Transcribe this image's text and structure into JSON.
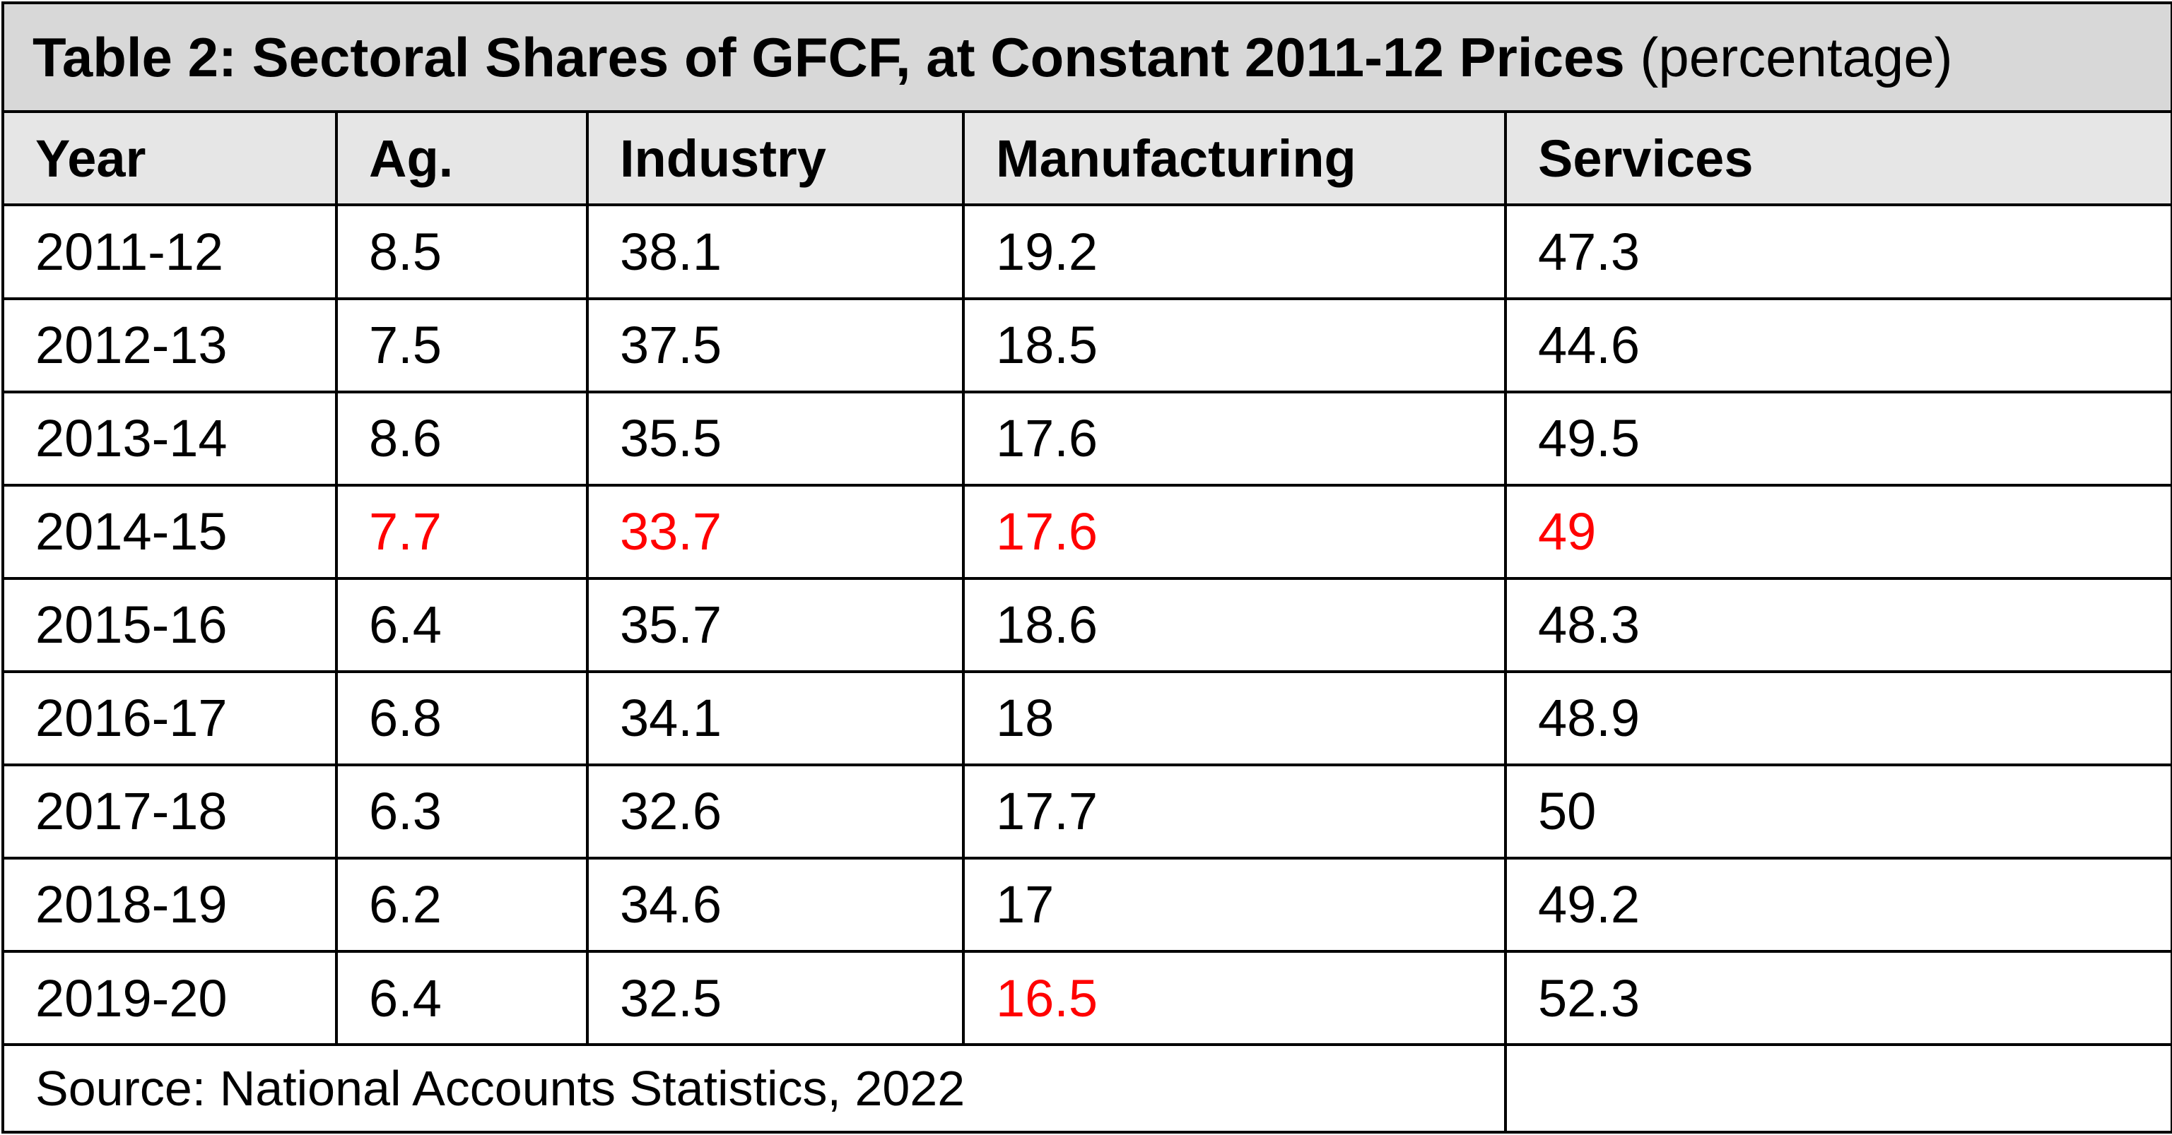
{
  "table": {
    "title": "Table 2: Sectoral Shares of GFCF, at Constant 2011-12 Prices",
    "unit": "(percentage)",
    "headers": [
      "Year",
      "Ag.",
      "Industry",
      "Manufacturing",
      "Services"
    ],
    "rows": [
      [
        "2011-12",
        "8.5",
        "38.1",
        "19.2",
        "47.3"
      ],
      [
        "2012-13",
        "7.5",
        "37.5",
        "18.5",
        "44.6"
      ],
      [
        "2013-14",
        "8.6",
        "35.5",
        "17.6",
        "49.5"
      ],
      [
        "2014-15",
        "7.7",
        "33.7",
        "17.6",
        "49"
      ],
      [
        "2015-16",
        "6.4",
        "35.7",
        "18.6",
        "48.3"
      ],
      [
        "2016-17",
        "6.8",
        "34.1",
        "18",
        "48.9"
      ],
      [
        "2017-18",
        "6.3",
        "32.6",
        "17.7",
        "50"
      ],
      [
        "2018-19",
        "6.2",
        "34.6",
        "17",
        "49.2"
      ],
      [
        "2019-20",
        "6.4",
        "32.5",
        "16.5",
        "52.3"
      ]
    ],
    "highlight_color": "#ff0000",
    "source": "Source: National Accounts Statistics, 2022"
  }
}
